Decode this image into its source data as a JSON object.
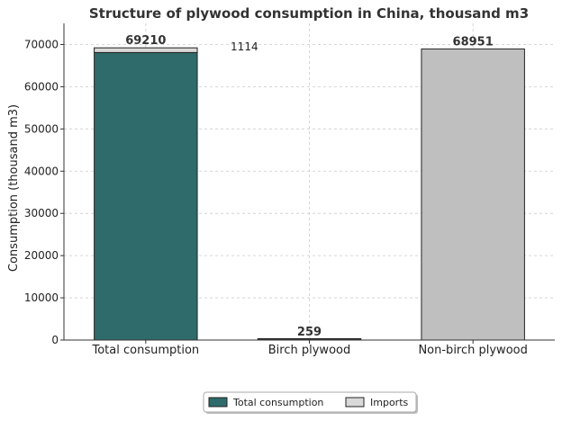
{
  "chart_data": {
    "type": "bar",
    "title": "Structure of plywood consumption in China, thousand m3",
    "xlabel": "",
    "ylabel": "Consumption (thousand m3)",
    "categories": [
      "Total consumption",
      "Birch plywood",
      "Non-birch plywood"
    ],
    "ylim": [
      0,
      75000
    ],
    "yticks": [
      0,
      10000,
      20000,
      30000,
      40000,
      50000,
      60000,
      70000
    ],
    "grid": true,
    "legend_position": "bottom-center",
    "series": [
      {
        "name": "Total consumption",
        "values": [
          68096,
          null,
          null
        ],
        "color": "#2f6b6b"
      },
      {
        "name": "Imports",
        "values": [
          1114,
          null,
          null
        ],
        "color": "#d9d9d9"
      },
      {
        "values": [
          null,
          259,
          null
        ],
        "color": "#3a3a3a"
      },
      {
        "values": [
          null,
          null,
          68951
        ],
        "color": "#bfbfbf"
      }
    ],
    "total_labels": [
      "69210",
      "259",
      "68951"
    ],
    "annotation": "1114"
  }
}
